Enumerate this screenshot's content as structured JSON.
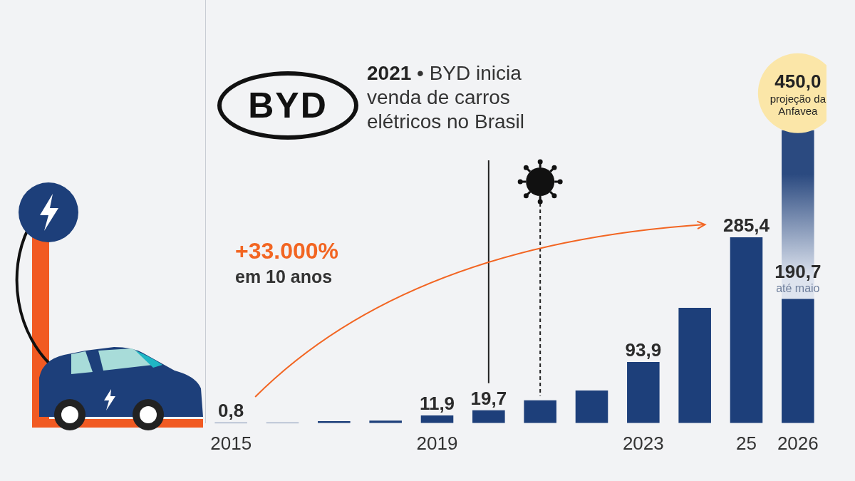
{
  "chart_data": {
    "type": "bar",
    "categories": [
      "2015",
      null,
      null,
      null,
      "2019",
      null,
      null,
      null,
      "2023",
      null,
      "25",
      "2026"
    ],
    "series": [
      {
        "color": "#1d3f7a",
        "values": [
          0.8,
          1,
          3,
          4,
          11.9,
          19.7,
          35,
          50,
          93.9,
          177,
          285.4,
          190.7
        ],
        "value_labels": [
          "0,8",
          null,
          null,
          null,
          "11,9",
          "19,7",
          null,
          null,
          "93,9",
          null,
          "285,4",
          "190,7"
        ]
      },
      {
        "color": "#2b4a80",
        "values": [
          null,
          null,
          null,
          null,
          null,
          null,
          null,
          null,
          null,
          null,
          null,
          450.0
        ],
        "value_labels": [
          null,
          null,
          null,
          null,
          null,
          null,
          null,
          null,
          null,
          null,
          null,
          "450,0"
        ]
      }
    ],
    "ylim": [
      0,
      650
    ],
    "yticks": [],
    "grid": false,
    "data_labels": true,
    "tick_labels": "x",
    "annotations": {
      "byd_logo": "BYD",
      "byd_note": "2021 • BYD inicia venda de carros elétricos no Brasil",
      "growth": "+33.000%",
      "growth_period": "em 10 anos",
      "partial_note": "até maio",
      "projection_note": "projeção da Anfavea"
    }
  }
}
